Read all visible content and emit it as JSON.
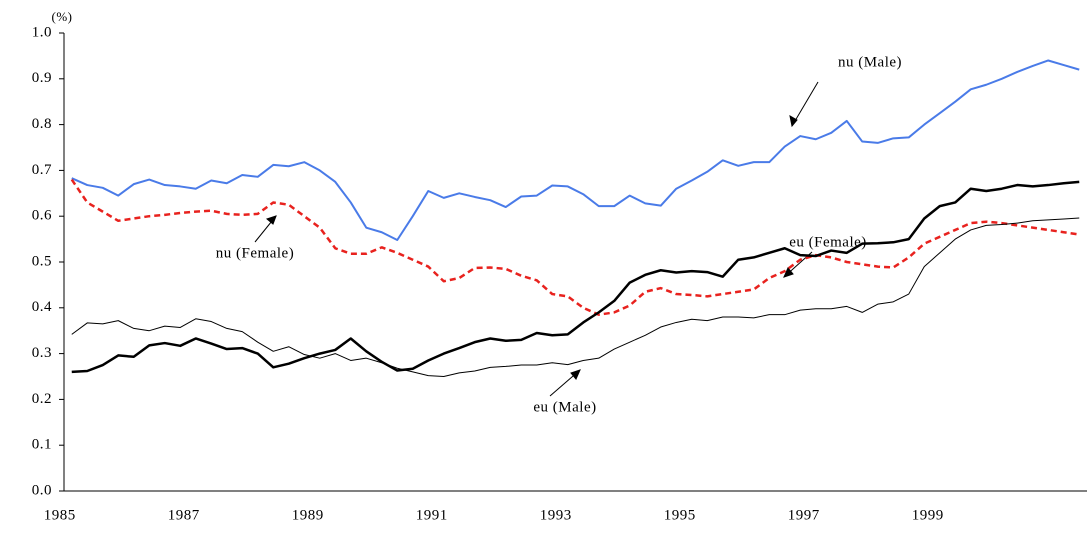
{
  "chart_data": {
    "type": "line",
    "y_label": "(%)",
    "categories": [
      "1985",
      null,
      null,
      null,
      null,
      null,
      null,
      null,
      "1987",
      null,
      null,
      null,
      null,
      null,
      null,
      null,
      "1989",
      null,
      null,
      null,
      null,
      null,
      null,
      null,
      "1991",
      null,
      null,
      null,
      null,
      null,
      null,
      null,
      "1993",
      null,
      null,
      null,
      null,
      null,
      null,
      null,
      "1995",
      null,
      null,
      null,
      null,
      null,
      null,
      null,
      "1997",
      null,
      null,
      null,
      null,
      null,
      null,
      null,
      "1999",
      null,
      null,
      null,
      null,
      null,
      null,
      null,
      null,
      null
    ],
    "ylim": [
      0,
      1
    ],
    "yticks": [
      {
        "value": 0,
        "label": "0.0"
      },
      0.1,
      0.2,
      0.3,
      0.4,
      0.5,
      0.6,
      0.7,
      0.8,
      0.9,
      {
        "value": 1,
        "label": "1.0"
      }
    ],
    "series": [
      {
        "name": "nu (Male)",
        "color": "#4a7be8",
        "width": 2,
        "dashed": false,
        "values": [
          0.683,
          0.668,
          0.662,
          0.645,
          0.67,
          0.68,
          0.668,
          0.665,
          0.66,
          0.678,
          0.672,
          0.69,
          0.686,
          0.712,
          0.709,
          0.718,
          0.7,
          0.675,
          0.63,
          0.575,
          0.565,
          0.548,
          0.6,
          0.655,
          0.64,
          0.65,
          0.642,
          0.635,
          0.62,
          0.643,
          0.645,
          0.667,
          0.665,
          0.648,
          0.622,
          0.622,
          0.645,
          0.628,
          0.623,
          0.66,
          0.678,
          0.697,
          0.722,
          0.71,
          0.718,
          0.718,
          0.752,
          0.775,
          0.768,
          0.782,
          0.808,
          0.763,
          0.76,
          0.77,
          0.772,
          0.8,
          0.825,
          0.85,
          0.877,
          0.887,
          0.9,
          0.915,
          0.928,
          0.94,
          0.93,
          0.92
        ]
      },
      {
        "name": "nu (Female)",
        "color": "#e8221e",
        "width": 2.5,
        "dashed": true,
        "values": [
          0.68,
          0.63,
          0.61,
          0.59,
          0.595,
          0.6,
          0.603,
          0.607,
          0.61,
          0.612,
          0.605,
          0.603,
          0.605,
          0.63,
          0.625,
          0.6,
          0.575,
          0.53,
          0.518,
          0.518,
          0.532,
          0.52,
          0.505,
          0.49,
          0.458,
          0.465,
          0.487,
          0.488,
          0.485,
          0.47,
          0.46,
          0.43,
          0.425,
          0.4,
          0.385,
          0.39,
          0.405,
          0.435,
          0.443,
          0.43,
          0.428,
          0.425,
          0.43,
          0.435,
          0.44,
          0.465,
          0.48,
          0.505,
          0.515,
          0.51,
          0.5,
          0.495,
          0.49,
          0.488,
          0.51,
          0.54,
          0.555,
          0.57,
          0.585,
          0.588,
          0.585,
          0.58,
          0.575,
          0.57,
          0.565,
          0.56
        ]
      },
      {
        "name": "eu (Female)",
        "color": "#000000",
        "width": 2.5,
        "dashed": false,
        "values": [
          0.26,
          0.262,
          0.275,
          0.296,
          0.293,
          0.318,
          0.323,
          0.317,
          0.333,
          0.322,
          0.31,
          0.312,
          0.3,
          0.27,
          0.278,
          0.29,
          0.3,
          0.308,
          0.333,
          0.305,
          0.282,
          0.263,
          0.267,
          0.285,
          0.3,
          0.312,
          0.325,
          0.333,
          0.328,
          0.33,
          0.345,
          0.34,
          0.342,
          0.368,
          0.39,
          0.415,
          0.455,
          0.472,
          0.482,
          0.477,
          0.48,
          0.478,
          0.468,
          0.505,
          0.51,
          0.52,
          0.53,
          0.515,
          0.513,
          0.525,
          0.52,
          0.54,
          0.541,
          0.543,
          0.55,
          0.595,
          0.622,
          0.63,
          0.66,
          0.655,
          0.66,
          0.668,
          0.665,
          0.668,
          0.672,
          0.675
        ]
      },
      {
        "name": "eu (Male)",
        "color": "#000000",
        "width": 1,
        "dashed": false,
        "values": [
          0.342,
          0.367,
          0.365,
          0.372,
          0.355,
          0.35,
          0.36,
          0.357,
          0.376,
          0.37,
          0.355,
          0.348,
          0.325,
          0.305,
          0.315,
          0.298,
          0.29,
          0.3,
          0.285,
          0.29,
          0.28,
          0.268,
          0.26,
          0.252,
          0.25,
          0.258,
          0.262,
          0.27,
          0.272,
          0.275,
          0.275,
          0.28,
          0.276,
          0.285,
          0.29,
          0.31,
          0.325,
          0.34,
          0.358,
          0.368,
          0.375,
          0.372,
          0.38,
          0.38,
          0.378,
          0.385,
          0.385,
          0.395,
          0.398,
          0.398,
          0.403,
          0.39,
          0.408,
          0.413,
          0.43,
          0.49,
          0.52,
          0.55,
          0.57,
          0.58,
          0.582,
          0.585,
          0.59,
          0.592,
          0.594,
          0.596
        ]
      }
    ]
  }
}
